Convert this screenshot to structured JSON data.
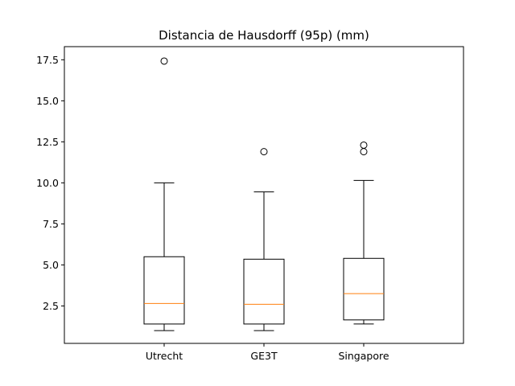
{
  "chart_data": {
    "type": "box",
    "title": "Distancia de Hausdorff (95p) (mm)",
    "xlabel": "",
    "ylabel": "",
    "categories": [
      "Utrecht",
      "GE3T",
      "Singapore"
    ],
    "ylim": [
      0.22,
      18.3
    ],
    "yticks": [
      2.5,
      5.0,
      7.5,
      10.0,
      12.5,
      15.0,
      17.5
    ],
    "ytick_labels": [
      "2.5",
      "5.0",
      "7.5",
      "10.0",
      "12.5",
      "15.0",
      "17.5"
    ],
    "boxes": [
      {
        "name": "Utrecht",
        "whisker_low": 1.0,
        "q1": 1.4,
        "median": 2.65,
        "q3": 5.5,
        "whisker_high": 10.0,
        "outliers": [
          17.42
        ]
      },
      {
        "name": "GE3T",
        "whisker_low": 1.0,
        "q1": 1.4,
        "median": 2.6,
        "q3": 5.35,
        "whisker_high": 9.45,
        "outliers": [
          11.9
        ]
      },
      {
        "name": "Singapore",
        "whisker_low": 1.4,
        "q1": 1.65,
        "median": 3.25,
        "q3": 5.4,
        "whisker_high": 10.15,
        "outliers": [
          11.9,
          12.3
        ]
      }
    ],
    "colors": {
      "box": "#000000",
      "median": "#ff7f0e",
      "outlier": "#000000"
    },
    "grid": false
  }
}
